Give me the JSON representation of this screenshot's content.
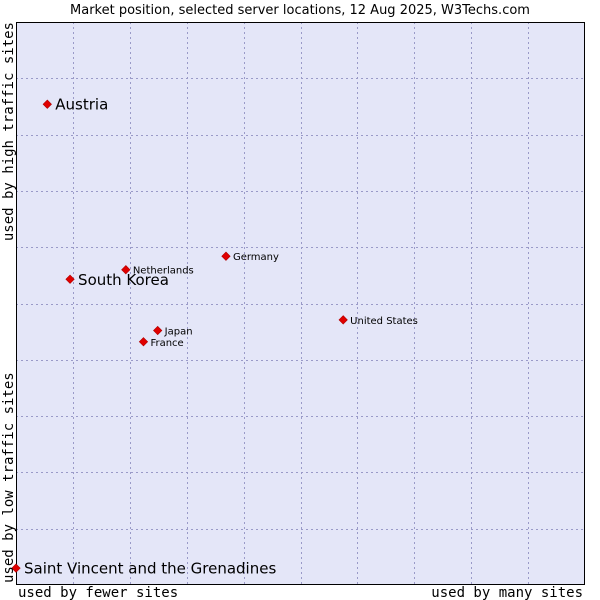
{
  "chart_data": {
    "type": "scatter",
    "title": "Market position, selected server locations, 12 Aug 2025, W3Techs.com",
    "xlabel_low": "used by fewer sites",
    "xlabel_high": "used by many sites",
    "ylabel_low": "used by low traffic sites",
    "ylabel_high": "used by high traffic sites",
    "xlim": [
      0,
      100
    ],
    "ylim": [
      0,
      100
    ],
    "grid": true,
    "colors": {
      "plot_bg": "#e4e6f8",
      "grid": "#9a9ac8",
      "border": "#000000",
      "marker": "#e00000"
    },
    "points": [
      {
        "name": "Austria",
        "x": 5.5,
        "y": 85.4,
        "emphasis": true
      },
      {
        "name": "South Korea",
        "x": 9.5,
        "y": 54.3,
        "emphasis": true
      },
      {
        "name": "Saint Vincent and the Grenadines",
        "x": 0.0,
        "y": 3.0,
        "emphasis": true
      },
      {
        "name": "Netherlands",
        "x": 19.3,
        "y": 56.0,
        "emphasis": false
      },
      {
        "name": "Germany",
        "x": 36.9,
        "y": 58.4,
        "emphasis": false
      },
      {
        "name": "United States",
        "x": 57.5,
        "y": 47.1,
        "emphasis": false
      },
      {
        "name": "Japan",
        "x": 24.9,
        "y": 45.2,
        "emphasis": false
      },
      {
        "name": "France",
        "x": 22.4,
        "y": 43.2,
        "emphasis": false
      }
    ]
  }
}
